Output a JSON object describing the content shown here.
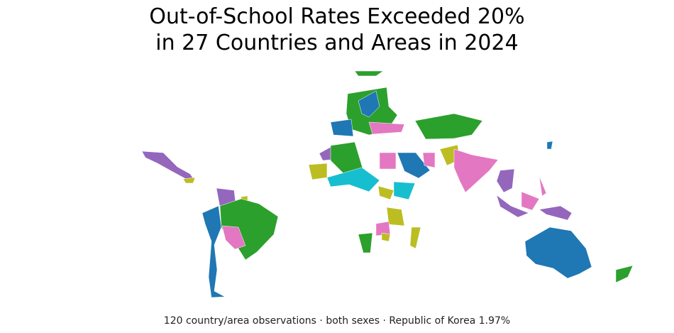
{
  "title_lines": [
    "Out-of-School Rates Exceeded 20%",
    "in 27 Countries and Areas in 2024"
  ],
  "subtitle": "120 country/area observations · both sexes · Republic of Korea 1.97%"
}
